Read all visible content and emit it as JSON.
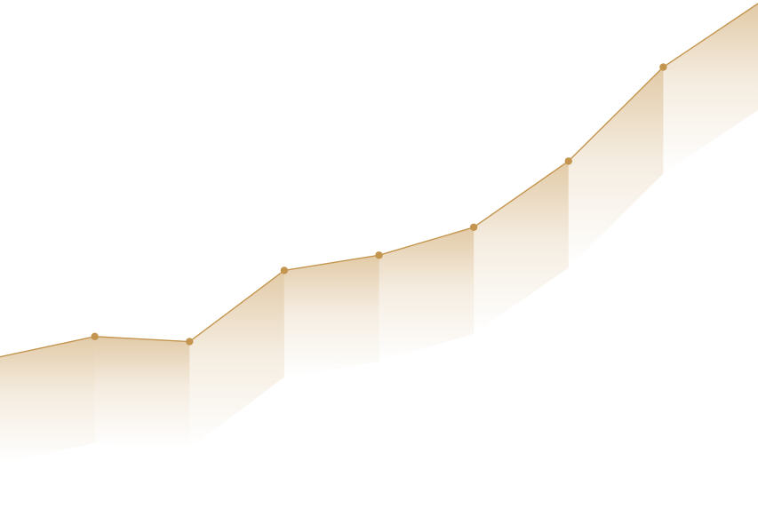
{
  "chart_data": {
    "type": "area",
    "title": "",
    "xlabel": "",
    "ylabel": "",
    "grid": false,
    "legend": "none",
    "x": [
      0,
      1,
      2,
      3,
      4,
      5,
      6,
      7,
      8
    ],
    "series": [
      {
        "values": [
          6.3,
          7.1,
          6.9,
          9.7,
          10.3,
          11.4,
          14.0,
          17.7,
          20.2
        ],
        "marked_points": [
          1,
          2,
          3,
          4,
          5,
          6,
          7
        ]
      }
    ],
    "xlim": [
      0,
      8
    ],
    "ylim": [
      0,
      20.2
    ]
  },
  "colors": {
    "line": "#c4954f",
    "marker": "#c4954f",
    "fill": "#c4954f",
    "background": "#ffffff"
  }
}
